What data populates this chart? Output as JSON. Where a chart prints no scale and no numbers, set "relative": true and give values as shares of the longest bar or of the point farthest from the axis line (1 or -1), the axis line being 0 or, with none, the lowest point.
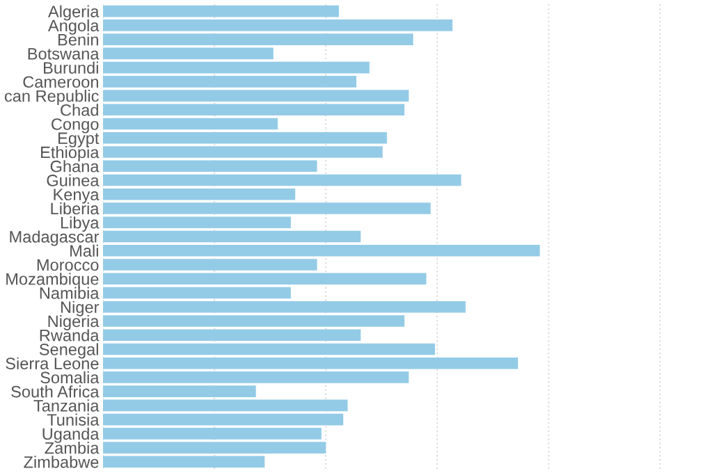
{
  "chart_data": {
    "type": "bar",
    "orientation": "horizontal",
    "relative": true,
    "grid": "x",
    "color": "#93cbe7",
    "categories": [
      "Algeria",
      "Angola",
      "Benin",
      "Botswana",
      "Burundi",
      "Cameroon",
      "can Republic",
      "Chad",
      "Congo",
      "Egypt",
      "Ethiopia",
      "Ghana",
      "Guinea",
      "Kenya",
      "Liberia",
      "Libya",
      "Madagascar",
      "Mali",
      "Morocco",
      "Mozambique",
      "Namibia",
      "Niger",
      "Nigeria",
      "Rwanda",
      "Senegal",
      "Sierra Leone",
      "Somalia",
      "South Africa",
      "Tanzania",
      "Tunisia",
      "Uganda",
      "Zambia",
      "Zimbabwe"
    ],
    "values": [
      0.54,
      0.8,
      0.71,
      0.39,
      0.61,
      0.58,
      0.7,
      0.69,
      0.4,
      0.65,
      0.64,
      0.49,
      0.82,
      0.44,
      0.75,
      0.43,
      0.59,
      1.0,
      0.49,
      0.74,
      0.43,
      0.83,
      0.69,
      0.59,
      0.76,
      0.95,
      0.7,
      0.35,
      0.56,
      0.55,
      0.5,
      0.51,
      0.37
    ]
  }
}
